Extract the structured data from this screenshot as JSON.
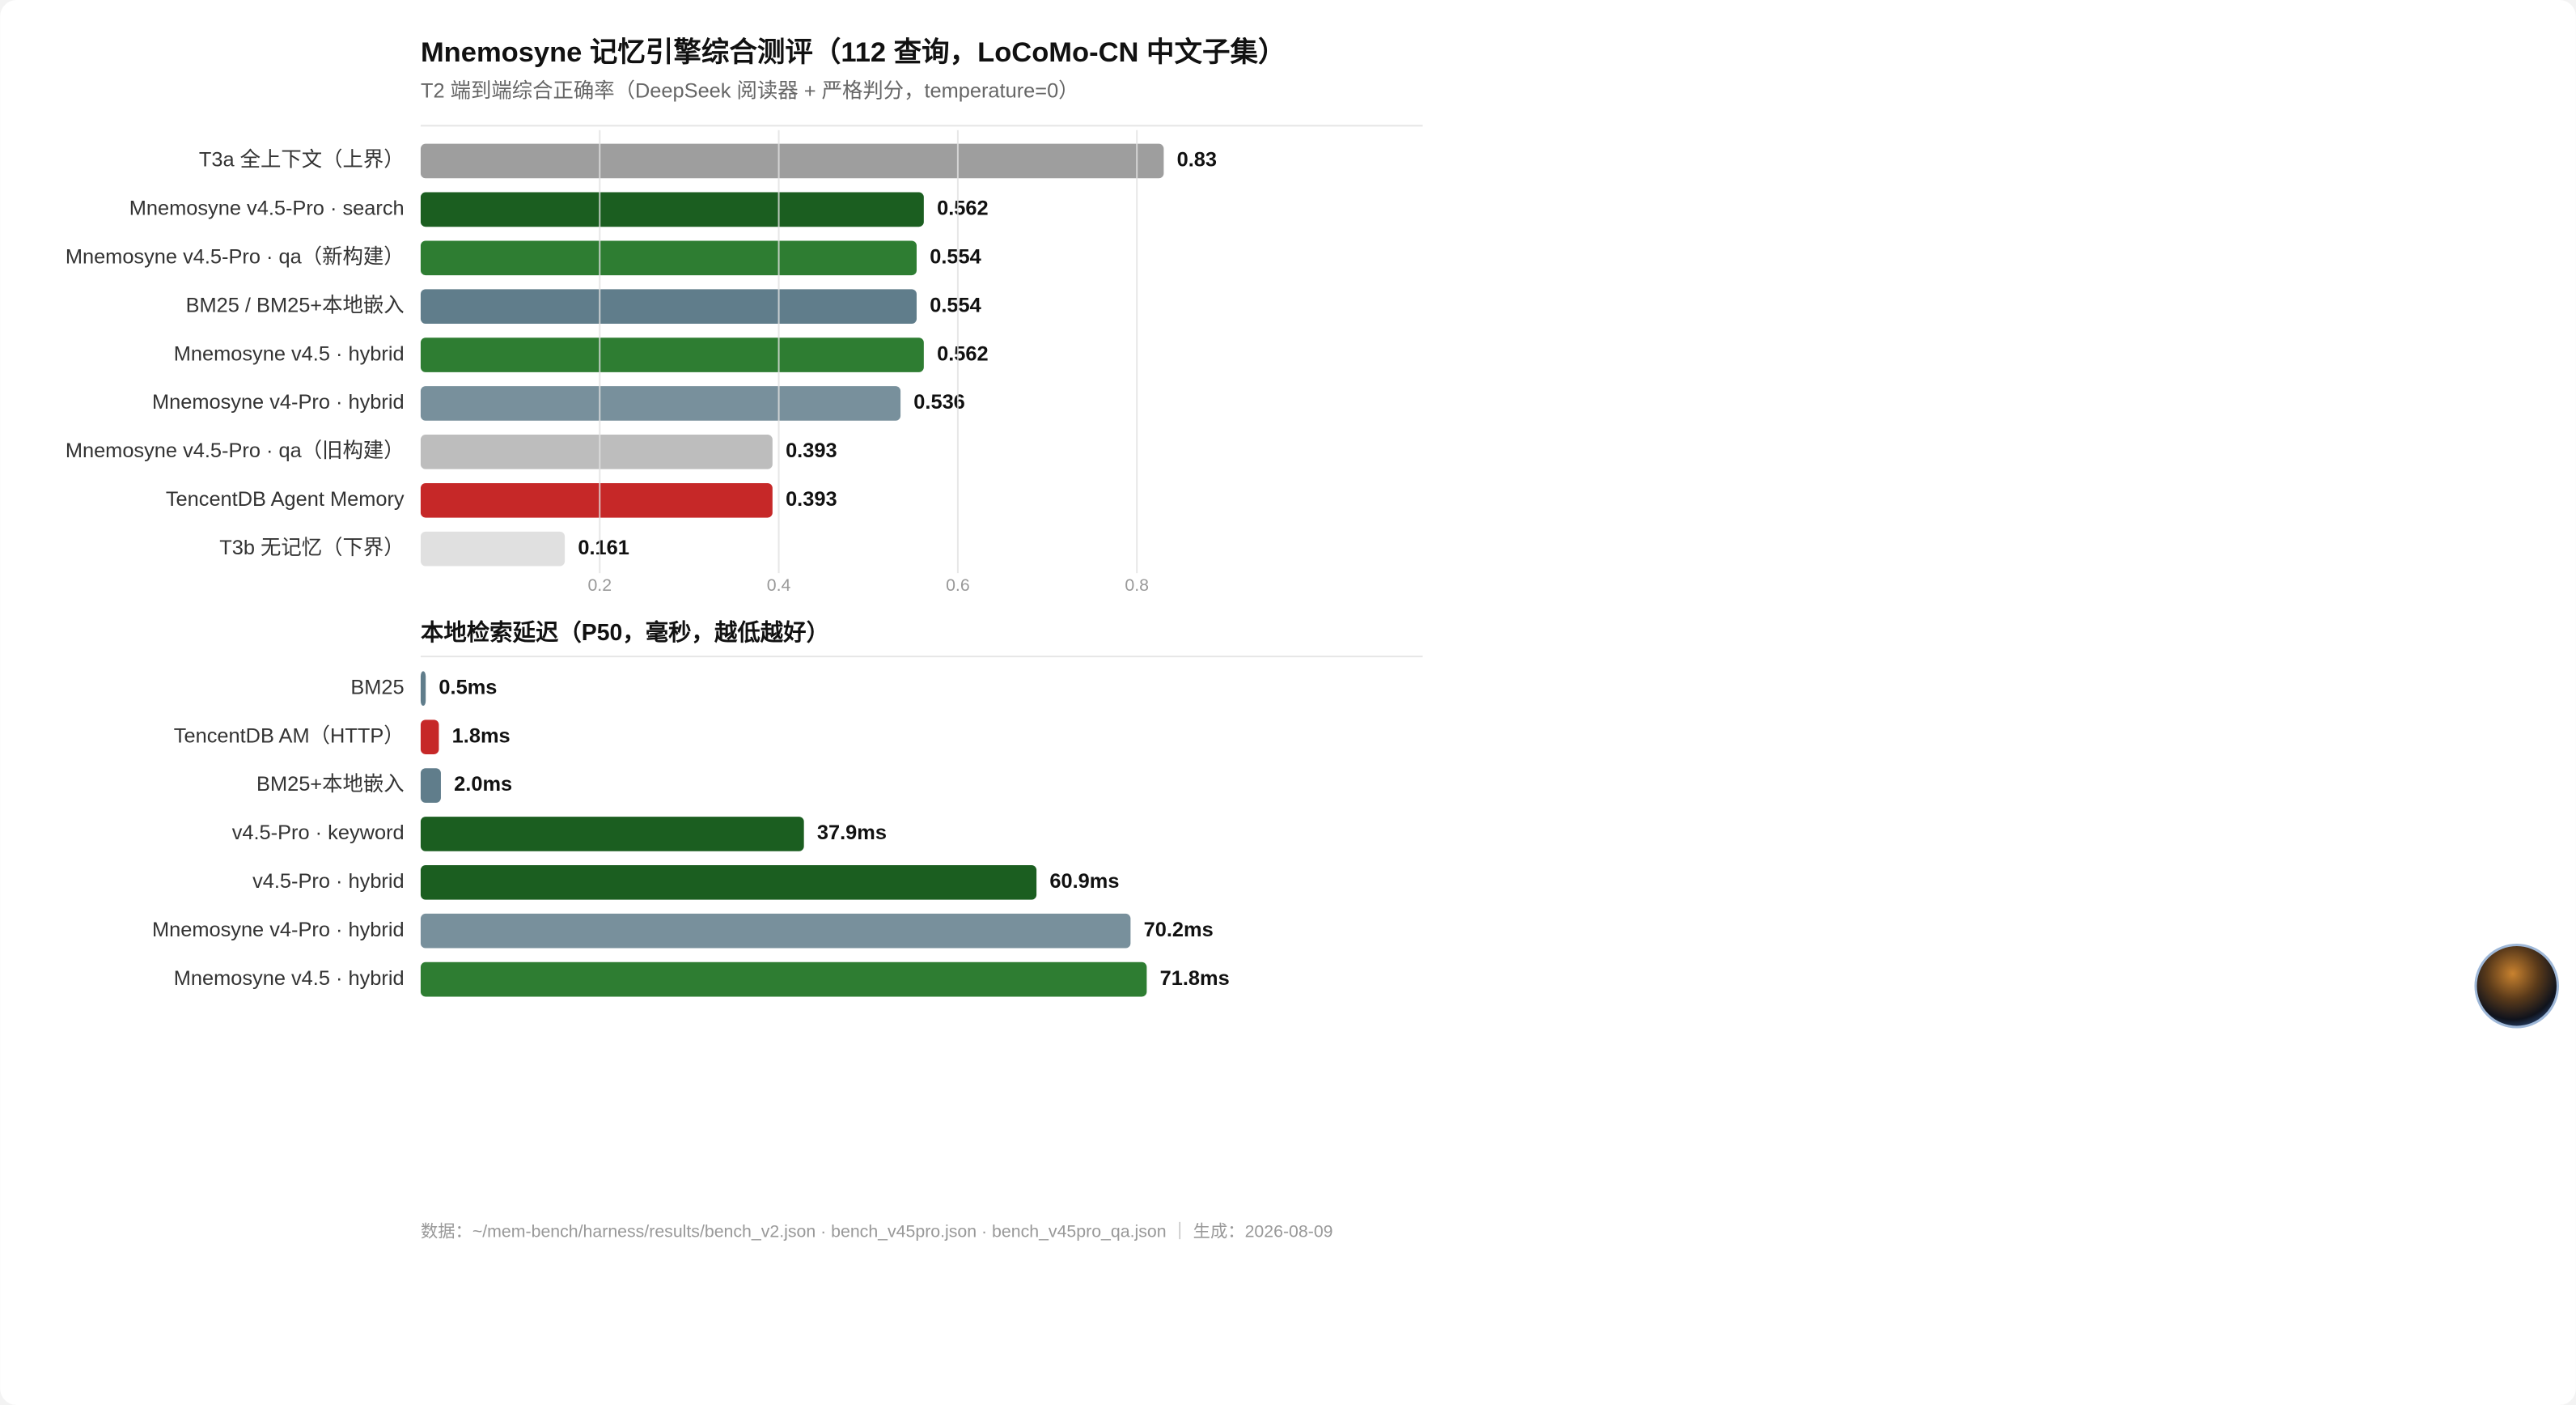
{
  "title": "Mnemosyne 记忆引擎综合测评（112 查询，LoCoMo-CN 中文子集）",
  "subtitle": "T2 端到端综合正确率（DeepSeek 阅读器 + 严格判分，temperature=0）",
  "chart_data": [
    {
      "type": "bar",
      "categories": [
        "T3a 全上下文（上界）",
        "Mnemosyne v4.5-Pro · search",
        "Mnemosyne v4.5-Pro · qa（新构建）",
        "BM25 / BM25+本地嵌入",
        "Mnemosyne v4.5 · hybrid",
        "Mnemosyne v4-Pro · hybrid",
        "Mnemosyne v4.5-Pro · qa（旧构建）",
        "TencentDB Agent Memory",
        "T3b 无记忆（下界）"
      ],
      "values": [
        0.83,
        0.562,
        0.554,
        0.554,
        0.562,
        0.536,
        0.393,
        0.393,
        0.161
      ],
      "colors": [
        "#9e9e9e",
        "#1b5e20",
        "#2e7d32",
        "#607d8b",
        "#2e7d32",
        "#78909c",
        "#bdbdbd",
        "#c62828",
        "#e0e0e0"
      ],
      "xlim": [
        0,
        1
      ],
      "xticks": [
        0.2,
        0.4,
        0.6,
        0.8
      ],
      "grid": true
    },
    {
      "type": "bar",
      "title": "本地检索延迟（P50，毫秒，越低越好）",
      "categories": [
        "BM25",
        "TencentDB AM（HTTP）",
        "BM25+本地嵌入",
        "v4.5-Pro · keyword",
        "v4.5-Pro · hybrid",
        "Mnemosyne v4-Pro · hybrid",
        "Mnemosyne v4.5 · hybrid"
      ],
      "values": [
        0.5,
        1.8,
        2.0,
        37.9,
        60.9,
        70.2,
        71.8
      ],
      "value_labels": [
        "0.5ms",
        "1.8ms",
        "2.0ms",
        "37.9ms",
        "60.9ms",
        "70.2ms",
        "71.8ms"
      ],
      "colors": [
        "#607d8b",
        "#c62828",
        "#607d8b",
        "#1b5e20",
        "#1b5e20",
        "#78909c",
        "#2e7d32"
      ]
    }
  ],
  "footer": "数据：~/mem-bench/harness/results/bench_v2.json · bench_v45pro.json · bench_v45pro_qa.json ｜ 生成：2026-08-09"
}
